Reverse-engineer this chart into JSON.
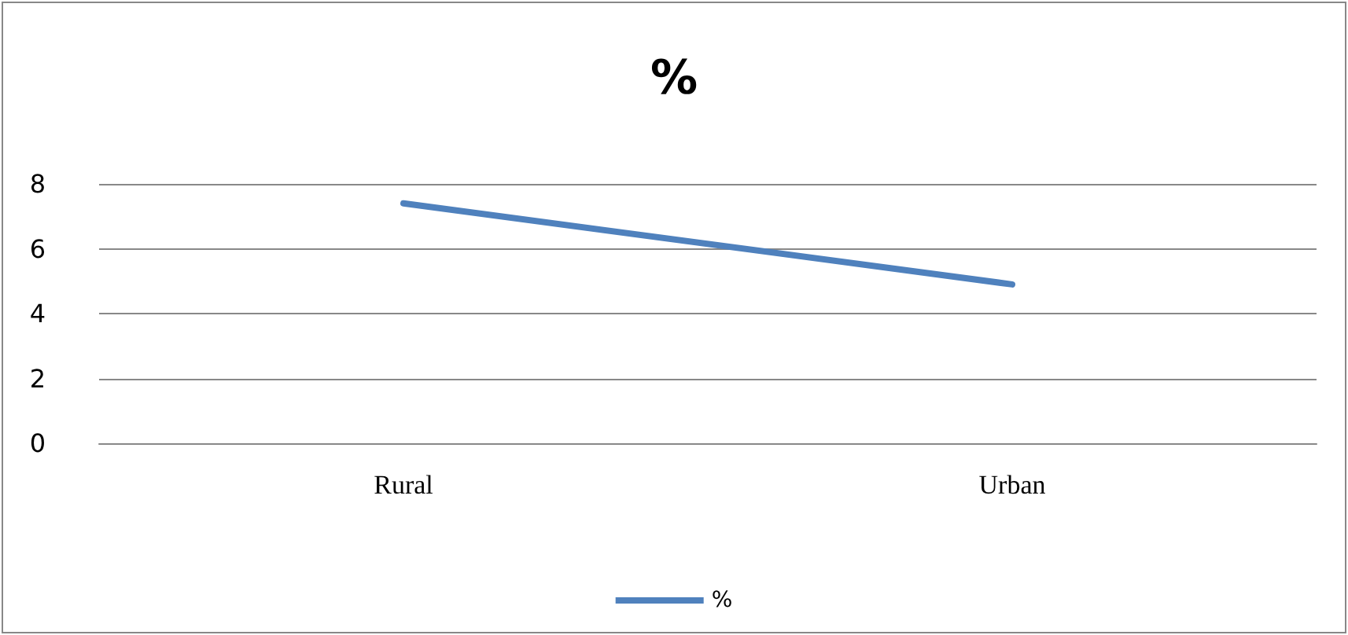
{
  "chart_data": {
    "type": "line",
    "title": "%",
    "categories": [
      "Rural",
      "Urban"
    ],
    "series": [
      {
        "name": "%",
        "color": "#4f81bd",
        "values": [
          7.4,
          4.9
        ]
      }
    ],
    "ylim": [
      0,
      8
    ],
    "yticks": [
      0,
      2,
      4,
      6,
      8
    ],
    "grid": "y",
    "legend": "bottom",
    "marker": "none"
  }
}
